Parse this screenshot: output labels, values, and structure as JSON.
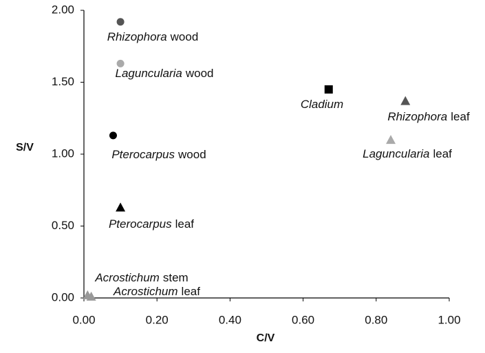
{
  "chart_data": {
    "type": "scatter",
    "xlabel": "C/V",
    "ylabel": "S/V",
    "xlim": [
      0,
      1
    ],
    "ylim": [
      0,
      2
    ],
    "xticks": [
      {
        "value": 0,
        "label": "0.00"
      },
      {
        "value": 0.2,
        "label": "0.20"
      },
      {
        "value": 0.4,
        "label": "0.40"
      },
      {
        "value": 0.6,
        "label": "0.60"
      },
      {
        "value": 0.8,
        "label": "0.80"
      },
      {
        "value": 1,
        "label": "1.00"
      }
    ],
    "yticks": [
      {
        "value": 0,
        "label": "0.00"
      },
      {
        "value": 0.5,
        "label": "0.50"
      },
      {
        "value": 1,
        "label": "1.00"
      },
      {
        "value": 1.5,
        "label": "1.50"
      },
      {
        "value": 2,
        "label": "2.00"
      }
    ],
    "grid": false,
    "points": [
      {
        "genus": "Rhizophora",
        "tissue": "wood",
        "marker": "circle",
        "color": "#555555",
        "x": 0.1,
        "y": 1.92
      },
      {
        "genus": "Laguncularia",
        "tissue": "wood",
        "marker": "circle",
        "color": "#aaaaaa",
        "x": 0.1,
        "y": 1.63
      },
      {
        "genus": "Pterocarpus",
        "tissue": "wood",
        "marker": "circle",
        "color": "#000000",
        "x": 0.08,
        "y": 1.13
      },
      {
        "genus": "Pterocarpus",
        "tissue": "leaf",
        "marker": "triangle",
        "color": "#000000",
        "x": 0.1,
        "y": 0.63
      },
      {
        "genus": "Cladium",
        "marker": "square",
        "color": "#000000",
        "x": 0.67,
        "y": 1.45
      },
      {
        "genus": "Rhizophora",
        "tissue": "leaf",
        "marker": "triangle",
        "color": "#555555",
        "x": 0.88,
        "y": 1.37
      },
      {
        "genus": "Laguncularia",
        "tissue": "leaf",
        "marker": "triangle",
        "color": "#aaaaaa",
        "x": 0.84,
        "y": 1.1
      },
      {
        "genus": "Acrostichum",
        "tissue": "stem",
        "marker": "triangle",
        "color": "#999999",
        "x": 0.01,
        "y": 0.02
      },
      {
        "genus": "Acrostichum",
        "tissue": "leaf",
        "marker": "triangle",
        "color": "#999999",
        "x": 0.02,
        "y": 0.01
      }
    ]
  }
}
